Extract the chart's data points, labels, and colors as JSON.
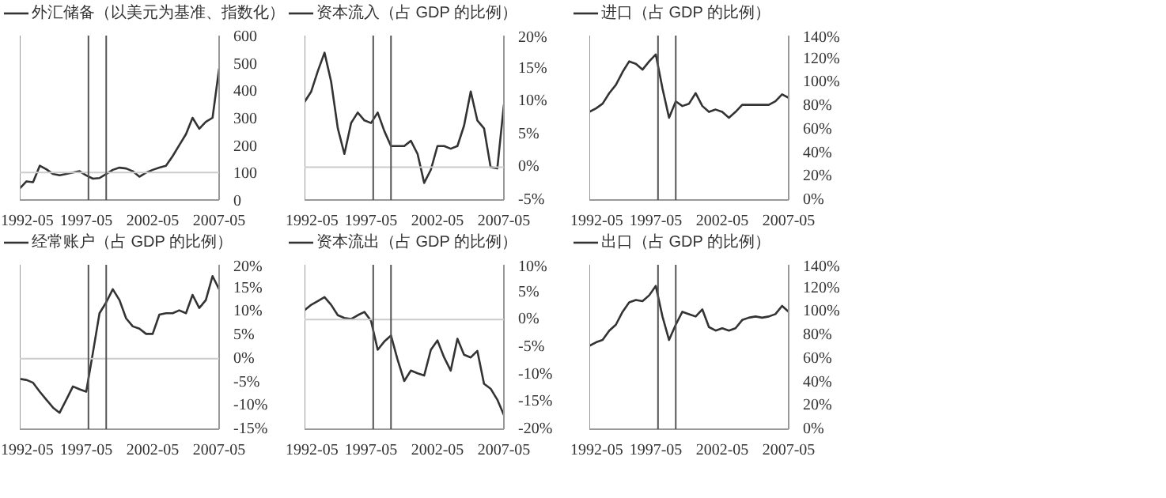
{
  "chart_data": [
    {
      "type": "line",
      "legend": "top",
      "grid": false,
      "xlim": [
        "1992-05",
        "2007-05"
      ],
      "xticks": [
        "1992-05",
        "1997-05",
        "2002-05",
        "2007-05"
      ],
      "ylim": [
        0,
        600
      ],
      "yticks": [
        0,
        100,
        200,
        300,
        400,
        500,
        600
      ],
      "x": [
        "1992-05",
        "1992-11",
        "1993-05",
        "1993-11",
        "1994-05",
        "1994-11",
        "1995-05",
        "1995-11",
        "1996-05",
        "1996-11",
        "1997-05",
        "1997-11",
        "1998-05",
        "1998-11",
        "1999-05",
        "1999-11",
        "2000-05",
        "2000-11",
        "2001-05",
        "2001-11",
        "2002-05",
        "2002-11",
        "2003-05",
        "2003-11",
        "2004-05",
        "2004-11",
        "2005-05",
        "2005-11",
        "2006-05",
        "2006-11",
        "2007-05"
      ],
      "series": [
        {
          "name": "外汇储备（以美元为基准、指数化）",
          "color": "#333333",
          "values": [
            42,
            68,
            65,
            125,
            112,
            95,
            90,
            95,
            100,
            105,
            90,
            78,
            80,
            95,
            110,
            118,
            115,
            105,
            85,
            100,
            110,
            118,
            125,
            160,
            200,
            240,
            300,
            260,
            285,
            300,
            480
          ]
        }
      ],
      "ref_lines": [
        {
          "axis": "y",
          "value": 100,
          "color": "#cccccc"
        },
        {
          "axis": "x",
          "value": "1997-07",
          "color": "#555555"
        },
        {
          "axis": "x",
          "value": "1998-11",
          "color": "#555555"
        }
      ]
    },
    {
      "type": "line",
      "legend": "top",
      "grid": false,
      "xlim": [
        "1992-05",
        "2007-05"
      ],
      "xticks": [
        "1992-05",
        "1997-05",
        "2002-05",
        "2007-05"
      ],
      "ylim": [
        -5,
        20
      ],
      "yticks": [
        {
          "value": -5,
          "label": "-5%"
        },
        {
          "value": 0,
          "label": "0%"
        },
        {
          "value": 5,
          "label": "5%"
        },
        {
          "value": 10,
          "label": "10%"
        },
        {
          "value": 15,
          "label": "15%"
        },
        {
          "value": 20,
          "label": "20%"
        }
      ],
      "x": [
        "1992-05",
        "1992-11",
        "1993-05",
        "1993-11",
        "1994-05",
        "1994-11",
        "1995-05",
        "1995-11",
        "1996-05",
        "1996-11",
        "1997-05",
        "1997-11",
        "1998-05",
        "1998-11",
        "1999-05",
        "1999-11",
        "2000-05",
        "2000-11",
        "2001-05",
        "2001-11",
        "2002-05",
        "2002-11",
        "2003-05",
        "2003-11",
        "2004-05",
        "2004-11",
        "2005-05",
        "2005-11",
        "2006-05",
        "2006-11",
        "2007-05"
      ],
      "series": [
        {
          "name": "资本流入（占 GDP 的比例）",
          "color": "#333333",
          "values": [
            9.9,
            11.5,
            14.6,
            17.4,
            13,
            5.9,
            2,
            6.7,
            8.3,
            7.1,
            6.7,
            8.3,
            5.5,
            3.2,
            3.2,
            3.2,
            4,
            2,
            -2.4,
            -0.4,
            3.2,
            3.2,
            2.8,
            3.2,
            6.3,
            11.5,
            7.1,
            5.9,
            0,
            -0.2,
            9.5
          ]
        }
      ],
      "ref_lines": [
        {
          "axis": "y",
          "value": 0,
          "color": "#cccccc"
        },
        {
          "axis": "x",
          "value": "1997-07",
          "color": "#555555"
        },
        {
          "axis": "x",
          "value": "1998-11",
          "color": "#555555"
        }
      ]
    },
    {
      "type": "line",
      "legend": "top",
      "grid": false,
      "xlim": [
        "1992-05",
        "2007-05"
      ],
      "xticks": [
        "1992-05",
        "1997-05",
        "2002-05",
        "2007-05"
      ],
      "ylim": [
        0,
        140
      ],
      "yticks": [
        {
          "value": 0,
          "label": "0%"
        },
        {
          "value": 20,
          "label": "20%"
        },
        {
          "value": 40,
          "label": "40%"
        },
        {
          "value": 60,
          "label": "60%"
        },
        {
          "value": 80,
          "label": "80%"
        },
        {
          "value": 100,
          "label": "100%"
        },
        {
          "value": 120,
          "label": "120%"
        },
        {
          "value": 140,
          "label": "140%"
        }
      ],
      "x": [
        "1992-05",
        "1992-11",
        "1993-05",
        "1993-11",
        "1994-05",
        "1994-11",
        "1995-05",
        "1995-11",
        "1996-05",
        "1996-11",
        "1997-05",
        "1997-11",
        "1998-05",
        "1998-11",
        "1999-05",
        "1999-11",
        "2000-05",
        "2000-11",
        "2001-05",
        "2001-11",
        "2002-05",
        "2002-11",
        "2003-05",
        "2003-11",
        "2004-05",
        "2004-11",
        "2005-05",
        "2005-11",
        "2006-05",
        "2006-11",
        "2007-05"
      ],
      "series": [
        {
          "name": "进口（占 GDP 的比例）",
          "color": "#333333",
          "values": [
            75,
            78,
            82,
            91,
            98,
            109,
            118,
            116,
            111,
            118,
            124,
            95,
            70,
            84,
            80,
            82,
            91,
            80,
            75,
            77,
            75,
            70,
            75,
            81,
            81,
            81,
            81,
            81,
            84,
            90,
            87
          ]
        }
      ],
      "ref_lines": [
        {
          "axis": "x",
          "value": "1997-07",
          "color": "#555555"
        },
        {
          "axis": "x",
          "value": "1998-11",
          "color": "#555555"
        }
      ]
    },
    {
      "type": "line",
      "legend": "top",
      "grid": false,
      "xlim": [
        "1992-05",
        "2007-05"
      ],
      "xticks": [
        "1992-05",
        "1997-05",
        "2002-05",
        "2007-05"
      ],
      "ylim": [
        -15,
        20
      ],
      "yticks": [
        {
          "value": -15,
          "label": "-15%"
        },
        {
          "value": -10,
          "label": "-10%"
        },
        {
          "value": -5,
          "label": "-5%"
        },
        {
          "value": 0,
          "label": "0%"
        },
        {
          "value": 5,
          "label": "5%"
        },
        {
          "value": 10,
          "label": "10%"
        },
        {
          "value": 15,
          "label": "15%"
        },
        {
          "value": 20,
          "label": "20%"
        }
      ],
      "x": [
        "1992-05",
        "1992-11",
        "1993-05",
        "1993-11",
        "1994-05",
        "1994-11",
        "1995-05",
        "1995-11",
        "1996-05",
        "1996-11",
        "1997-05",
        "1997-11",
        "1998-05",
        "1998-11",
        "1999-05",
        "1999-11",
        "2000-05",
        "2000-11",
        "2001-05",
        "2001-11",
        "2002-05",
        "2002-11",
        "2003-05",
        "2003-11",
        "2004-05",
        "2004-11",
        "2005-05",
        "2005-11",
        "2006-05",
        "2006-11",
        "2007-05"
      ],
      "series": [
        {
          "name": "经常账户（占 GDP 的比例）",
          "color": "#333333",
          "values": [
            -4.3,
            -4.5,
            -5.1,
            -7,
            -8.7,
            -10.4,
            -11.5,
            -8.7,
            -5.9,
            -6.5,
            -7,
            1.3,
            9.7,
            12,
            14.8,
            12.5,
            8.6,
            6.9,
            6.4,
            5.3,
            5.3,
            9.4,
            9.7,
            9.7,
            10.3,
            9.7,
            13.6,
            10.8,
            12.5,
            17.6,
            14.8
          ]
        }
      ],
      "ref_lines": [
        {
          "axis": "y",
          "value": 0,
          "color": "#cccccc"
        },
        {
          "axis": "x",
          "value": "1997-07",
          "color": "#555555"
        },
        {
          "axis": "x",
          "value": "1998-11",
          "color": "#555555"
        }
      ]
    },
    {
      "type": "line",
      "legend": "top",
      "grid": false,
      "xlim": [
        "1992-05",
        "2007-05"
      ],
      "xticks": [
        "1992-05",
        "1997-05",
        "2002-05",
        "2007-05"
      ],
      "ylim": [
        -20,
        10
      ],
      "yticks": [
        {
          "value": -20,
          "label": "-20%"
        },
        {
          "value": -15,
          "label": "-15%"
        },
        {
          "value": -10,
          "label": "-10%"
        },
        {
          "value": -5,
          "label": "-5%"
        },
        {
          "value": 0,
          "label": "0%"
        },
        {
          "value": 5,
          "label": "5%"
        },
        {
          "value": 10,
          "label": "10%"
        }
      ],
      "x": [
        "1992-05",
        "1992-11",
        "1993-05",
        "1993-11",
        "1994-05",
        "1994-11",
        "1995-05",
        "1995-11",
        "1996-05",
        "1996-11",
        "1997-05",
        "1997-11",
        "1998-05",
        "1998-11",
        "1999-05",
        "1999-11",
        "2000-05",
        "2000-11",
        "2001-05",
        "2001-11",
        "2002-05",
        "2002-11",
        "2003-05",
        "2003-11",
        "2004-05",
        "2004-11",
        "2005-05",
        "2005-11",
        "2006-05",
        "2006-11",
        "2007-05"
      ],
      "series": [
        {
          "name": "资本流出（占 GDP 的比例）",
          "color": "#333333",
          "values": [
            1.7,
            2.7,
            3.4,
            4.1,
            2.7,
            0.8,
            0.3,
            0.1,
            0.8,
            1.4,
            -0.2,
            -5.5,
            -4,
            -2.9,
            -7.3,
            -11.2,
            -9.3,
            -9.8,
            -10.2,
            -5.5,
            -3.8,
            -6.9,
            -9.3,
            -3.5,
            -6.4,
            -6.9,
            -5.7,
            -11.7,
            -12.6,
            -14.6,
            -17.4
          ]
        }
      ],
      "ref_lines": [
        {
          "axis": "y",
          "value": 0,
          "color": "#cccccc"
        },
        {
          "axis": "x",
          "value": "1997-07",
          "color": "#555555"
        },
        {
          "axis": "x",
          "value": "1998-11",
          "color": "#555555"
        }
      ]
    },
    {
      "type": "line",
      "legend": "top",
      "grid": false,
      "xlim": [
        "1992-05",
        "2007-05"
      ],
      "xticks": [
        "1992-05",
        "1997-05",
        "2002-05",
        "2007-05"
      ],
      "ylim": [
        0,
        140
      ],
      "yticks": [
        {
          "value": 0,
          "label": "0%"
        },
        {
          "value": 20,
          "label": "20%"
        },
        {
          "value": 40,
          "label": "40%"
        },
        {
          "value": 60,
          "label": "60%"
        },
        {
          "value": 80,
          "label": "80%"
        },
        {
          "value": 100,
          "label": "100%"
        },
        {
          "value": 120,
          "label": "120%"
        },
        {
          "value": 140,
          "label": "140%"
        }
      ],
      "x": [
        "1992-05",
        "1992-11",
        "1993-05",
        "1993-11",
        "1994-05",
        "1994-11",
        "1995-05",
        "1995-11",
        "1996-05",
        "1996-11",
        "1997-05",
        "1997-11",
        "1998-05",
        "1998-11",
        "1999-05",
        "1999-11",
        "2000-05",
        "2000-11",
        "2001-05",
        "2001-11",
        "2002-05",
        "2002-11",
        "2003-05",
        "2003-11",
        "2004-05",
        "2004-11",
        "2005-05",
        "2005-11",
        "2006-05",
        "2006-11",
        "2007-05"
      ],
      "series": [
        {
          "name": "出口（占 GDP 的比例）",
          "color": "#333333",
          "values": [
            71,
            74,
            76,
            84,
            89,
            100,
            108,
            110,
            109,
            114,
            122,
            96,
            76,
            89,
            100,
            98,
            96,
            102,
            87,
            84,
            86,
            84,
            86,
            93,
            95,
            96,
            95,
            96,
            98,
            105,
            100
          ]
        }
      ],
      "ref_lines": [
        {
          "axis": "x",
          "value": "1997-07",
          "color": "#555555"
        },
        {
          "axis": "x",
          "value": "1998-11",
          "color": "#555555"
        }
      ]
    }
  ]
}
